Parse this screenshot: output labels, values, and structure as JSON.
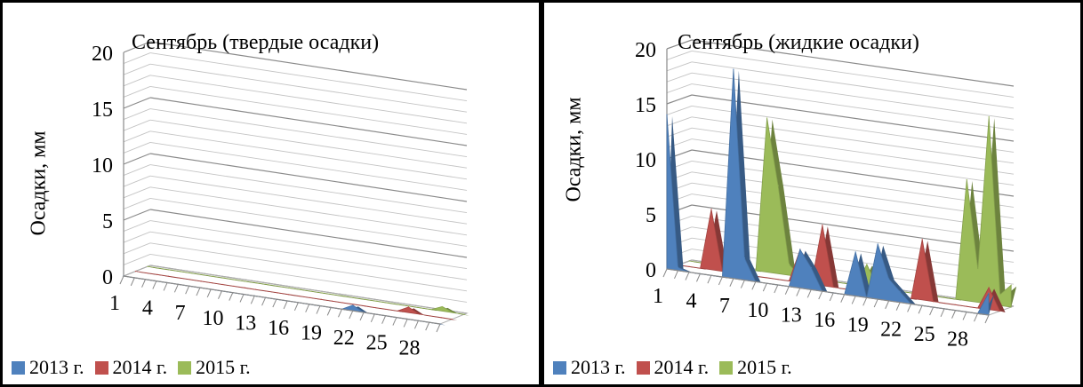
{
  "chart_data": [
    {
      "type": "area",
      "subtype": "3d-area",
      "title": "Сентябрь (твердые осадки)",
      "xlabel": "",
      "ylabel": "Осадки, мм",
      "ylim": [
        0,
        20
      ],
      "yticks": [
        "0",
        "5",
        "10",
        "15",
        "20"
      ],
      "xtick_labels": [
        "1",
        "4",
        "7",
        "10",
        "13",
        "16",
        "19",
        "22",
        "25",
        "28"
      ],
      "x": [
        1,
        2,
        3,
        4,
        5,
        6,
        7,
        8,
        9,
        10,
        11,
        12,
        13,
        14,
        15,
        16,
        17,
        18,
        19,
        20,
        21,
        22,
        23,
        24,
        25,
        26,
        27,
        28,
        29,
        30
      ],
      "grid": true,
      "legend_position": "bottom",
      "series": [
        {
          "name": "2013 г.",
          "color": "#4F81BD",
          "values": [
            0,
            0,
            0,
            0,
            0,
            0,
            0,
            0,
            0,
            0,
            0,
            0,
            0,
            0,
            0,
            0,
            0,
            0,
            0,
            0,
            0,
            0.5,
            0,
            0,
            0,
            0,
            0,
            0,
            0,
            0
          ]
        },
        {
          "name": "2014 г.",
          "color": "#C0504D",
          "values": [
            0,
            0,
            0,
            0,
            0,
            0,
            0,
            0,
            0,
            0,
            0,
            0,
            0,
            0,
            0,
            0,
            0,
            0,
            0,
            0,
            0,
            0,
            0,
            0,
            0,
            0.5,
            0,
            0,
            0,
            0
          ]
        },
        {
          "name": "2015 г.",
          "color": "#9BBB59",
          "values": [
            0,
            0,
            0,
            0,
            0,
            0,
            0,
            0,
            0,
            0,
            0,
            0,
            0,
            0,
            0,
            0,
            0,
            0,
            0,
            0,
            0,
            0,
            0,
            0,
            0,
            0,
            0,
            0.4,
            0,
            0
          ]
        }
      ]
    },
    {
      "type": "area",
      "subtype": "3d-area",
      "title": "Сентябрь (жидкие осадки)",
      "xlabel": "",
      "ylabel": "Осадки, мм",
      "ylim": [
        0,
        20
      ],
      "yticks": [
        "0",
        "5",
        "10",
        "15",
        "20"
      ],
      "xtick_labels": [
        "1",
        "4",
        "7",
        "10",
        "13",
        "16",
        "19",
        "22",
        "25",
        "28"
      ],
      "x": [
        1,
        2,
        3,
        4,
        5,
        6,
        7,
        8,
        9,
        10,
        11,
        12,
        13,
        14,
        15,
        16,
        17,
        18,
        19,
        20,
        21,
        22,
        23,
        24,
        25,
        26,
        27,
        28,
        29,
        30
      ],
      "grid": true,
      "legend_position": "bottom",
      "series": [
        {
          "name": "2013 г.",
          "color": "#4F81BD",
          "values": [
            14,
            0.3,
            0,
            0,
            0,
            0,
            19,
            2,
            0,
            0,
            0,
            0,
            3.5,
            2,
            0,
            0,
            0,
            4,
            0,
            5,
            2,
            1,
            0,
            0,
            0,
            0,
            0,
            0,
            0,
            2
          ]
        },
        {
          "name": "2014 г.",
          "color": "#C0504D",
          "values": [
            0,
            0,
            0,
            5.5,
            0,
            0,
            0,
            0,
            0,
            0,
            0,
            3,
            0,
            5.5,
            0,
            0,
            0,
            0,
            0,
            0,
            0,
            0,
            5.5,
            0,
            0,
            0,
            0,
            0,
            2,
            0
          ]
        },
        {
          "name": "2015 г.",
          "color": "#9BBB59",
          "values": [
            0,
            0,
            0,
            0,
            0,
            0,
            0,
            14,
            8,
            1,
            0,
            0,
            0,
            0,
            0,
            0,
            2,
            0,
            0,
            0,
            0,
            0,
            0,
            0,
            0,
            11,
            3,
            17,
            1,
            2
          ]
        }
      ]
    }
  ]
}
